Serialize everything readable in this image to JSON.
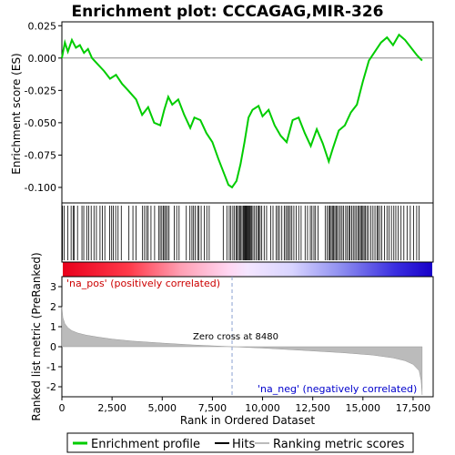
{
  "chart_data": {
    "type": "line",
    "title": "Enrichment plot: CCCAGAG,MIR-326",
    "xlabel": "Rank in Ordered Dataset",
    "es_panel": {
      "ylabel": "Enrichment score (ES)",
      "ylim": [
        -0.112,
        0.028
      ],
      "yticks": [
        0.025,
        0.0,
        -0.025,
        -0.05,
        -0.075,
        -0.1
      ],
      "ytick_labels": [
        "0.025",
        "0.000",
        "-0.025",
        "-0.050",
        "-0.075",
        "-0.100"
      ],
      "x": [
        0,
        150,
        300,
        500,
        700,
        900,
        1100,
        1300,
        1500,
        1800,
        2100,
        2400,
        2700,
        3000,
        3300,
        3700,
        4000,
        4300,
        4600,
        4900,
        5100,
        5300,
        5500,
        5800,
        6100,
        6400,
        6600,
        6900,
        7200,
        7500,
        7800,
        8100,
        8300,
        8480,
        8700,
        8900,
        9100,
        9300,
        9500,
        9800,
        10000,
        10300,
        10600,
        10900,
        11200,
        11500,
        11800,
        12100,
        12400,
        12700,
        13000,
        13300,
        13500,
        13800,
        14100,
        14400,
        14700,
        15000,
        15300,
        15600,
        15900,
        16200,
        16500,
        16800,
        17100,
        17400,
        17700,
        17950
      ],
      "y": [
        0.0,
        0.012,
        0.005,
        0.014,
        0.008,
        0.01,
        0.004,
        0.007,
        0.0,
        -0.005,
        -0.01,
        -0.016,
        -0.013,
        -0.02,
        -0.025,
        -0.032,
        -0.044,
        -0.038,
        -0.05,
        -0.052,
        -0.04,
        -0.03,
        -0.036,
        -0.032,
        -0.044,
        -0.054,
        -0.046,
        -0.048,
        -0.058,
        -0.065,
        -0.078,
        -0.09,
        -0.098,
        -0.1,
        -0.095,
        -0.082,
        -0.065,
        -0.046,
        -0.04,
        -0.037,
        -0.045,
        -0.04,
        -0.052,
        -0.06,
        -0.065,
        -0.048,
        -0.046,
        -0.058,
        -0.068,
        -0.055,
        -0.066,
        -0.08,
        -0.07,
        -0.056,
        -0.052,
        -0.042,
        -0.036,
        -0.018,
        -0.002,
        0.005,
        0.012,
        0.016,
        0.01,
        0.018,
        0.014,
        0.008,
        0.002,
        -0.002
      ],
      "color": "#00cc00"
    },
    "hits_panel": {
      "hit_positions": [
        30,
        120,
        300,
        460,
        560,
        620,
        780,
        1000,
        1090,
        1240,
        1340,
        1460,
        1600,
        1720,
        1900,
        2020,
        2140,
        2380,
        2480,
        2560,
        2680,
        2800,
        2960,
        3340,
        3540,
        3700,
        4020,
        4120,
        4220,
        4300,
        4440,
        4620,
        4820,
        4900,
        4980,
        5060,
        5120,
        5180,
        5260,
        5340,
        5600,
        5720,
        5840,
        6200,
        6380,
        6480,
        6560,
        6640,
        6760,
        6820,
        6940,
        7100,
        7220,
        7340,
        8040,
        8220,
        8340,
        8420,
        8520,
        8600,
        8680,
        8740,
        8800,
        8860,
        8920,
        8980,
        9040,
        9080,
        9120,
        9160,
        9200,
        9240,
        9280,
        9320,
        9360,
        9400,
        9460,
        9520,
        9600,
        9680,
        9760,
        9820,
        9880,
        9960,
        10080,
        10200,
        10400,
        10520,
        10680,
        10760,
        10840,
        10960,
        11080,
        11160,
        11240,
        11300,
        11380,
        11460,
        11560,
        11680,
        11800,
        11920,
        12120,
        12240,
        12380,
        12460,
        12560,
        12640,
        12760,
        13120,
        13220,
        13300,
        13360,
        13420,
        13480,
        13540,
        13600,
        13660,
        13720,
        13800,
        13880,
        13960,
        14040,
        14140,
        14220,
        14300,
        14360,
        14440,
        14520,
        14600,
        14680,
        14760,
        14820,
        14880,
        14940,
        15000,
        15060,
        15120,
        15200,
        15280,
        15400,
        15500,
        15600,
        15700,
        15760,
        15840,
        15940,
        16080,
        16200,
        16300,
        16420,
        16540,
        16640,
        16760,
        16900,
        17040,
        17200,
        17360,
        17520,
        17680,
        17800
      ]
    },
    "metric_panel": {
      "ylabel": "Ranked list metric (PreRanked)",
      "ylim": [
        -2.5,
        3.5
      ],
      "yticks": [
        3,
        2,
        1,
        0,
        -1,
        -2
      ],
      "ytick_labels": [
        "3",
        "2",
        "1",
        "0",
        "-1",
        "-2"
      ],
      "x": [
        0,
        50,
        150,
        300,
        500,
        800,
        1200,
        1800,
        2500,
        3500,
        5000,
        6500,
        8480,
        10000,
        12000,
        14000,
        15500,
        16500,
        17100,
        17500,
        17800,
        17900,
        17950
      ],
      "y": [
        2.0,
        1.45,
        1.15,
        0.95,
        0.8,
        0.68,
        0.58,
        0.48,
        0.38,
        0.28,
        0.18,
        0.09,
        0.0,
        -0.07,
        -0.18,
        -0.3,
        -0.42,
        -0.56,
        -0.7,
        -0.88,
        -1.2,
        -1.7,
        -2.4
      ],
      "zero_cross_label": "Zero cross at 8480",
      "pos_label": "'na_pos' (positively correlated)",
      "neg_label": "'na_neg' (negatively correlated)"
    },
    "x_axis": {
      "xlim": [
        0,
        18500
      ],
      "xticks": [
        0,
        2500,
        5000,
        7500,
        10000,
        12500,
        15000,
        17500
      ],
      "xtick_labels": [
        "0",
        "2,500",
        "5,000",
        "7,500",
        "10,000",
        "12,500",
        "15,000",
        "17,500"
      ]
    },
    "legend": {
      "placement": "bottom",
      "entries": [
        {
          "label": "Enrichment profile",
          "color": "#00cc00"
        },
        {
          "label": "Hits",
          "color": "#000000"
        },
        {
          "label": "Ranking metric scores",
          "color": "#bbbbbb"
        }
      ]
    }
  }
}
